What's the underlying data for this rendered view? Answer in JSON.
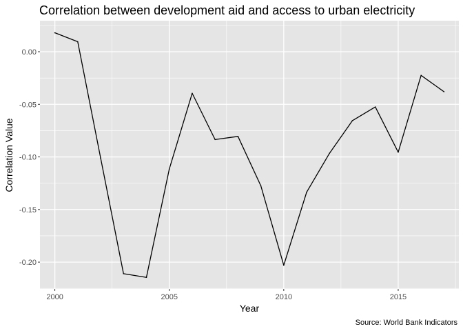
{
  "chart_data": {
    "type": "line",
    "title": "Correlation between development aid and access to urban electricity",
    "xlabel": "Year",
    "ylabel": "Correlation Value",
    "caption": "Source: World Bank Indicators",
    "xlim": [
      1999.35,
      2017.65
    ],
    "ylim": [
      -0.2255,
      0.0295
    ],
    "x_ticks": [
      2000,
      2005,
      2010,
      2015
    ],
    "x_tick_labels": [
      "2000",
      "2005",
      "2010",
      "2015"
    ],
    "y_ticks": [
      0.0,
      -0.05,
      -0.1,
      -0.15,
      -0.2
    ],
    "y_tick_labels": [
      "0.00",
      "-0.05",
      "-0.10",
      "-0.15",
      "-0.20"
    ],
    "grid": true,
    "series": [
      {
        "x": [
          2000,
          2001,
          2002,
          2003,
          2004,
          2005,
          2006,
          2007,
          2008,
          2009,
          2010,
          2011,
          2012,
          2013,
          2014,
          2015,
          2016,
          2017
        ],
        "values": [
          0.018,
          0.0095,
          -0.101,
          -0.211,
          -0.2145,
          -0.1115,
          -0.0395,
          -0.0835,
          -0.0805,
          -0.1275,
          -0.203,
          -0.1335,
          -0.0965,
          -0.0655,
          -0.0525,
          -0.0955,
          -0.0225,
          -0.038
        ]
      }
    ],
    "colors": {
      "panel_background": "#e5e5e5",
      "grid_major": "#ffffff",
      "line": "#000000"
    }
  }
}
